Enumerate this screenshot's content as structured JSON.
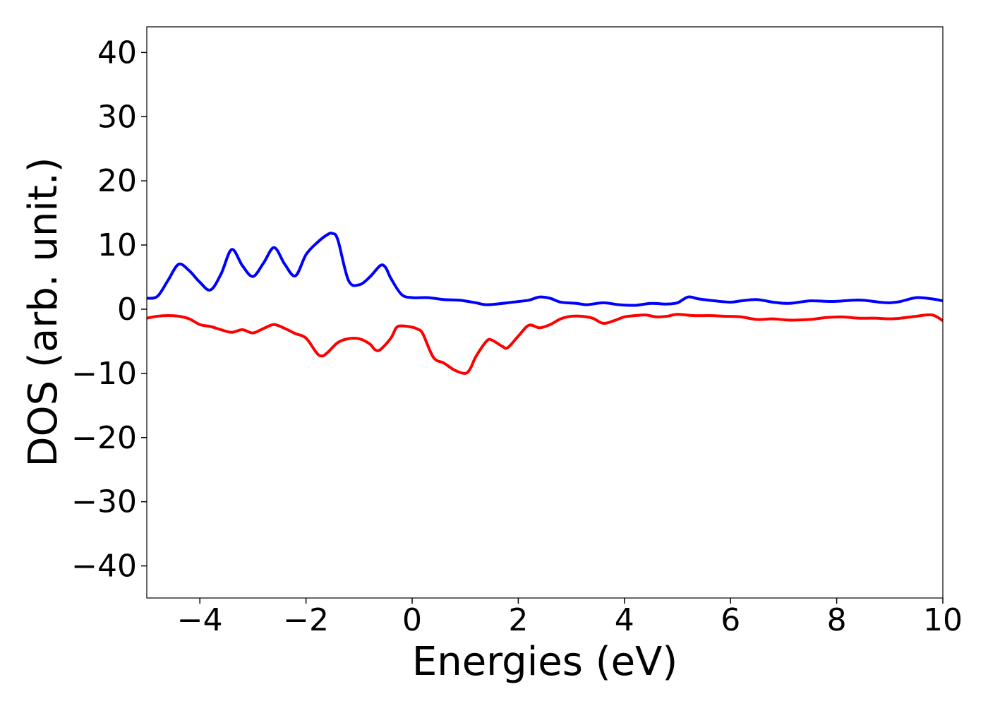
{
  "chart_data": {
    "type": "line",
    "title": "",
    "xlabel": "Energies (eV)",
    "ylabel": "DOS (arb. unit.)",
    "xlim": [
      -5,
      10
    ],
    "ylim": [
      -45,
      44
    ],
    "grid": false,
    "x_ticks": [
      -4,
      -2,
      0,
      2,
      4,
      6,
      8,
      10
    ],
    "x_tick_labels": [
      "−4",
      "−2",
      "0",
      "2",
      "4",
      "6",
      "8",
      "10"
    ],
    "y_ticks": [
      40,
      30,
      20,
      10,
      0,
      -10,
      -20,
      -30,
      -40
    ],
    "y_tick_labels": [
      "40",
      "30",
      "20",
      "10",
      "0",
      "−10",
      "−20",
      "−30",
      "−40"
    ],
    "series": [
      {
        "color": "#0000ff",
        "x": [
          -5.0,
          -4.8,
          -4.6,
          -4.4,
          -4.2,
          -4.0,
          -3.8,
          -3.6,
          -3.4,
          -3.2,
          -3.0,
          -2.8,
          -2.6,
          -2.4,
          -2.2,
          -2.0,
          -1.8,
          -1.6,
          -1.5,
          -1.4,
          -1.2,
          -1.0,
          -0.8,
          -0.6,
          -0.5,
          -0.4,
          -0.2,
          0.0,
          0.3,
          0.6,
          0.9,
          1.2,
          1.4,
          1.7,
          2.0,
          2.2,
          2.4,
          2.6,
          2.8,
          3.1,
          3.3,
          3.6,
          3.9,
          4.2,
          4.5,
          4.8,
          5.0,
          5.2,
          5.4,
          5.7,
          6.0,
          6.2,
          6.5,
          6.8,
          7.1,
          7.5,
          7.9,
          8.3,
          8.5,
          8.8,
          9.0,
          9.2,
          9.5,
          9.8,
          10.0
        ],
        "y": [
          1.7,
          2.0,
          4.5,
          7.0,
          6.0,
          4.2,
          3.0,
          5.5,
          9.3,
          6.8,
          5.1,
          7.2,
          9.6,
          7.0,
          5.2,
          8.5,
          10.3,
          11.6,
          11.8,
          10.8,
          4.5,
          3.8,
          5.0,
          6.8,
          6.5,
          4.8,
          2.3,
          1.8,
          1.8,
          1.5,
          1.4,
          1.0,
          0.7,
          0.9,
          1.2,
          1.4,
          1.9,
          1.7,
          1.1,
          0.9,
          0.7,
          1.0,
          0.7,
          0.6,
          0.9,
          0.8,
          1.0,
          1.9,
          1.6,
          1.3,
          1.1,
          1.3,
          1.5,
          1.1,
          0.9,
          1.3,
          1.2,
          1.4,
          1.4,
          1.1,
          1.0,
          1.2,
          1.8,
          1.6,
          1.3
        ]
      },
      {
        "color": "#ff0000",
        "x": [
          -5.0,
          -4.8,
          -4.6,
          -4.4,
          -4.2,
          -4.0,
          -3.8,
          -3.6,
          -3.4,
          -3.2,
          -3.0,
          -2.8,
          -2.6,
          -2.4,
          -2.2,
          -2.0,
          -1.8,
          -1.7,
          -1.6,
          -1.4,
          -1.2,
          -1.0,
          -0.8,
          -0.7,
          -0.6,
          -0.4,
          -0.3,
          -0.2,
          0.0,
          0.1,
          0.2,
          0.4,
          0.6,
          0.8,
          1.0,
          1.1,
          1.2,
          1.4,
          1.5,
          1.7,
          1.8,
          2.0,
          2.2,
          2.4,
          2.6,
          2.8,
          3.0,
          3.2,
          3.4,
          3.6,
          3.8,
          4.0,
          4.2,
          4.4,
          4.6,
          4.8,
          5.0,
          5.3,
          5.6,
          5.9,
          6.2,
          6.5,
          6.8,
          7.1,
          7.5,
          7.8,
          8.1,
          8.4,
          8.7,
          9.0,
          9.2,
          9.5,
          9.8,
          10.0
        ],
        "y": [
          -1.4,
          -1.1,
          -1.0,
          -1.1,
          -1.5,
          -2.4,
          -2.7,
          -3.2,
          -3.6,
          -3.2,
          -3.7,
          -3.0,
          -2.4,
          -3.0,
          -3.8,
          -4.5,
          -6.8,
          -7.3,
          -6.8,
          -5.2,
          -4.6,
          -4.6,
          -5.4,
          -6.3,
          -6.3,
          -4.5,
          -2.9,
          -2.6,
          -2.8,
          -3.1,
          -3.8,
          -7.5,
          -8.4,
          -9.5,
          -10.0,
          -9.2,
          -7.4,
          -5.0,
          -4.8,
          -5.8,
          -6.0,
          -4.2,
          -2.5,
          -2.9,
          -2.4,
          -1.5,
          -1.1,
          -1.1,
          -1.4,
          -2.2,
          -1.8,
          -1.2,
          -1.0,
          -0.9,
          -1.2,
          -1.1,
          -0.8,
          -1.0,
          -1.0,
          -1.1,
          -1.2,
          -1.6,
          -1.5,
          -1.7,
          -1.6,
          -1.3,
          -1.2,
          -1.4,
          -1.4,
          -1.5,
          -1.4,
          -1.1,
          -0.9,
          -1.8
        ]
      }
    ]
  }
}
